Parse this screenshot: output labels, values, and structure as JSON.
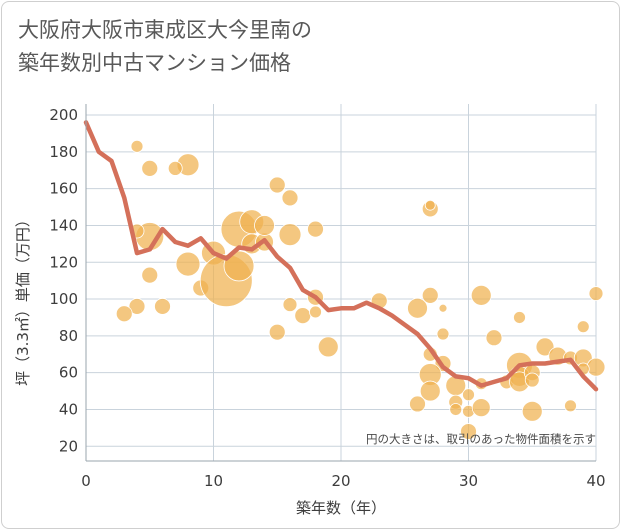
{
  "chart_data": {
    "type": "scatter",
    "title_lines": [
      "大阪府大阪市東成区大今里南の",
      "築年数別中古マンション価格"
    ],
    "xlabel": "築年数（年）",
    "ylabel": "坪（3.3㎡）単価（万円）",
    "xlim": [
      0,
      40
    ],
    "ylim": [
      12,
      206
    ],
    "x_ticks": [
      0,
      10,
      20,
      30,
      40
    ],
    "y_ticks": [
      20,
      40,
      60,
      80,
      100,
      120,
      140,
      160,
      180,
      200
    ],
    "grid": true,
    "note": "円の大きさは、取引のあった物件面積を示す",
    "colors": {
      "bubble": "#f0b24f",
      "line": "#d4705a",
      "grid": "#c9d3dc",
      "axis": "#9aa5ae"
    },
    "series": [
      {
        "type": "line",
        "points": [
          [
            0,
            196
          ],
          [
            1,
            180
          ],
          [
            2,
            175
          ],
          [
            3,
            155
          ],
          [
            4,
            125
          ],
          [
            5,
            127
          ],
          [
            6,
            138
          ],
          [
            7,
            131
          ],
          [
            8,
            129
          ],
          [
            9,
            133
          ],
          [
            10,
            125
          ],
          [
            11,
            122
          ],
          [
            12,
            128
          ],
          [
            13,
            127
          ],
          [
            14,
            132
          ],
          [
            15,
            123
          ],
          [
            16,
            117
          ],
          [
            17,
            105
          ],
          [
            18,
            101
          ],
          [
            19,
            94
          ],
          [
            20,
            95
          ],
          [
            21,
            95
          ],
          [
            22,
            98
          ],
          [
            23,
            95
          ],
          [
            24,
            91
          ],
          [
            25,
            86
          ],
          [
            26,
            81
          ],
          [
            27,
            73
          ],
          [
            28,
            63
          ],
          [
            29,
            58
          ],
          [
            30,
            57
          ],
          [
            31,
            53
          ],
          [
            32,
            55
          ],
          [
            33,
            57
          ],
          [
            34,
            64
          ],
          [
            35,
            65
          ],
          [
            36,
            65
          ],
          [
            37,
            66
          ],
          [
            38,
            67
          ],
          [
            39,
            58
          ],
          [
            40,
            51
          ]
        ]
      },
      {
        "type": "scatter",
        "points": [
          {
            "x": 4,
            "y": 183,
            "r": 6
          },
          {
            "x": 5,
            "y": 171,
            "r": 8
          },
          {
            "x": 8,
            "y": 173,
            "r": 11
          },
          {
            "x": 7,
            "y": 171,
            "r": 7
          },
          {
            "x": 5,
            "y": 134,
            "r": 14
          },
          {
            "x": 4,
            "y": 137,
            "r": 7
          },
          {
            "x": 8,
            "y": 119,
            "r": 12
          },
          {
            "x": 5,
            "y": 113,
            "r": 8
          },
          {
            "x": 4,
            "y": 96,
            "r": 8
          },
          {
            "x": 6,
            "y": 96,
            "r": 8
          },
          {
            "x": 3,
            "y": 92,
            "r": 8
          },
          {
            "x": 9,
            "y": 106,
            "r": 8
          },
          {
            "x": 10,
            "y": 125,
            "r": 12
          },
          {
            "x": 12,
            "y": 138,
            "r": 18
          },
          {
            "x": 13,
            "y": 142,
            "r": 12
          },
          {
            "x": 11,
            "y": 110,
            "r": 26
          },
          {
            "x": 12,
            "y": 118,
            "r": 15
          },
          {
            "x": 13,
            "y": 130,
            "r": 10
          },
          {
            "x": 14,
            "y": 131,
            "r": 9
          },
          {
            "x": 14,
            "y": 140,
            "r": 10
          },
          {
            "x": 15,
            "y": 162,
            "r": 8
          },
          {
            "x": 16,
            "y": 155,
            "r": 8
          },
          {
            "x": 16,
            "y": 135,
            "r": 11
          },
          {
            "x": 18,
            "y": 138,
            "r": 8
          },
          {
            "x": 18,
            "y": 101,
            "r": 8
          },
          {
            "x": 16,
            "y": 97,
            "r": 7
          },
          {
            "x": 17,
            "y": 91,
            "r": 8
          },
          {
            "x": 15,
            "y": 82,
            "r": 8
          },
          {
            "x": 18,
            "y": 93,
            "r": 6
          },
          {
            "x": 19,
            "y": 74,
            "r": 10
          },
          {
            "x": 23,
            "y": 99,
            "r": 8
          },
          {
            "x": 27,
            "y": 149,
            "r": 8
          },
          {
            "x": 27,
            "y": 151,
            "r": 5
          },
          {
            "x": 26,
            "y": 95,
            "r": 10
          },
          {
            "x": 27,
            "y": 102,
            "r": 8
          },
          {
            "x": 28,
            "y": 95,
            "r": 4
          },
          {
            "x": 28,
            "y": 81,
            "r": 6
          },
          {
            "x": 27,
            "y": 70,
            "r": 7
          },
          {
            "x": 28,
            "y": 65,
            "r": 8
          },
          {
            "x": 27,
            "y": 59,
            "r": 11
          },
          {
            "x": 27,
            "y": 50,
            "r": 10
          },
          {
            "x": 26,
            "y": 43,
            "r": 8
          },
          {
            "x": 29,
            "y": 53,
            "r": 10
          },
          {
            "x": 29,
            "y": 44,
            "r": 7
          },
          {
            "x": 29,
            "y": 40,
            "r": 6
          },
          {
            "x": 30,
            "y": 48,
            "r": 6
          },
          {
            "x": 30,
            "y": 39,
            "r": 6
          },
          {
            "x": 30,
            "y": 28,
            "r": 8
          },
          {
            "x": 31,
            "y": 102,
            "r": 10
          },
          {
            "x": 32,
            "y": 79,
            "r": 8
          },
          {
            "x": 31,
            "y": 41,
            "r": 9
          },
          {
            "x": 31,
            "y": 54,
            "r": 6
          },
          {
            "x": 33,
            "y": 55,
            "r": 7
          },
          {
            "x": 34,
            "y": 90,
            "r": 6
          },
          {
            "x": 34,
            "y": 64,
            "r": 13
          },
          {
            "x": 34,
            "y": 58,
            "r": 10
          },
          {
            "x": 34,
            "y": 55,
            "r": 10
          },
          {
            "x": 35,
            "y": 60,
            "r": 8
          },
          {
            "x": 35,
            "y": 56,
            "r": 7
          },
          {
            "x": 35,
            "y": 39,
            "r": 10
          },
          {
            "x": 36,
            "y": 74,
            "r": 9
          },
          {
            "x": 37,
            "y": 69,
            "r": 9
          },
          {
            "x": 38,
            "y": 68,
            "r": 7
          },
          {
            "x": 38,
            "y": 42,
            "r": 6
          },
          {
            "x": 39,
            "y": 85,
            "r": 6
          },
          {
            "x": 39,
            "y": 68,
            "r": 9
          },
          {
            "x": 40,
            "y": 103,
            "r": 7
          },
          {
            "x": 40,
            "y": 63,
            "r": 9
          },
          {
            "x": 39,
            "y": 62,
            "r": 6
          }
        ]
      }
    ]
  }
}
